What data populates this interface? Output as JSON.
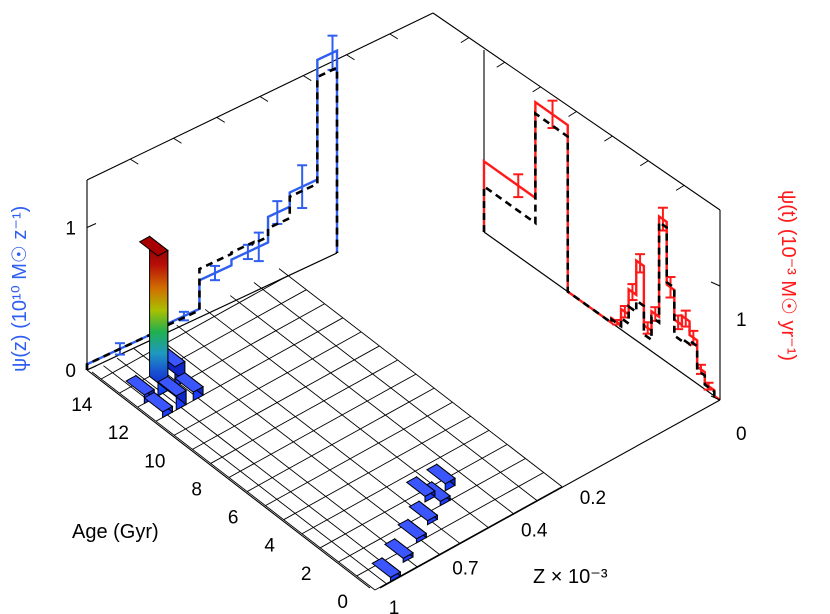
{
  "chart_data": {
    "type": "bar",
    "subtype": "3d-bar-with-side-projections",
    "x_axis": {
      "title": "Age (Gyr)",
      "ticks": [
        "0",
        "2",
        "4",
        "6",
        "8",
        "10",
        "12",
        "14"
      ],
      "range": [
        0,
        15.5
      ]
    },
    "z_axis": {
      "title": "Z × 10⁻³",
      "ticks": [
        "0.2",
        "0.4",
        "0.7",
        "1"
      ],
      "scale": "log"
    },
    "left_panel": {
      "ylabel": "ψ(z) (10¹⁰ M☉ z⁻¹)",
      "ticks": [
        "0",
        "1"
      ],
      "ylim": [
        0,
        1.5
      ],
      "x": [
        0.1,
        0.2,
        0.28,
        0.4,
        0.45,
        0.55,
        0.72,
        1.0
      ],
      "series": [
        {
          "role": "measured",
          "color": "#2f5ff0",
          "values": [
            0.04,
            0.06,
            0.26,
            0.3,
            0.3,
            0.48,
            0.58,
            1.42
          ],
          "errors": [
            0.04,
            0.03,
            0.05,
            0.05,
            0.1,
            0.08,
            0.15,
            0.12
          ]
        },
        {
          "role": "model",
          "color": "#000000",
          "values": [
            0.04,
            0.05,
            0.34,
            0.35,
            0.34,
            0.4,
            0.55,
            1.3
          ]
        }
      ]
    },
    "right_panel": {
      "ylabel": "ψ(t) (10⁻³ M☉ yr⁻¹)",
      "ticks": [
        "0",
        "1"
      ],
      "ylim": [
        0,
        2.0
      ],
      "x": [
        0,
        0.75,
        1.25,
        1.75,
        2.25,
        2.75,
        3.25,
        3.75,
        4.25,
        4.75,
        5.25,
        5.75,
        6.25,
        6.75,
        7.5,
        9.0,
        11.0,
        13.25
      ],
      "series": [
        {
          "role": "measured",
          "color": "#ff1a1a",
          "values": [
            0.0,
            0.05,
            0.15,
            0.38,
            0.5,
            0.42,
            0.68,
            1.23,
            0.35,
            0.18,
            0.7,
            0.4,
            0.18,
            0.04,
            0.0,
            0.0,
            1.46,
            0.62
          ],
          "errors": [
            0.0,
            0.03,
            0.04,
            0.06,
            0.07,
            0.06,
            0.09,
            0.1,
            0.06,
            0.05,
            0.08,
            0.07,
            0.05,
            0.02,
            0.0,
            0.0,
            0.12,
            0.1
          ]
        },
        {
          "role": "model",
          "color": "#000000",
          "values": [
            0.0,
            0.04,
            0.12,
            0.33,
            0.3,
            0.28,
            0.7,
            1.18,
            0.3,
            0.1,
            0.35,
            0.25,
            0.1,
            0.03,
            0.0,
            0.0,
            1.36,
            0.4
          ]
        }
      ]
    },
    "bars_3d": [
      {
        "age": 13.5,
        "z": 0.7,
        "height": 1.0
      },
      {
        "age": 13.5,
        "z": 0.55,
        "height": 0.14
      },
      {
        "age": 12.5,
        "z": 0.7,
        "height": 0.1
      },
      {
        "age": 12.5,
        "z": 0.55,
        "height": 0.06
      },
      {
        "age": 13.5,
        "z": 0.85,
        "height": 0.06
      },
      {
        "age": 12.5,
        "z": 0.85,
        "height": 0.04
      },
      {
        "age": 3.0,
        "z": 0.18,
        "height": 0.05
      },
      {
        "age": 3.0,
        "z": 0.24,
        "height": 0.04
      },
      {
        "age": 2.5,
        "z": 0.22,
        "height": 0.03
      },
      {
        "age": 2.0,
        "z": 0.3,
        "height": 0.025
      },
      {
        "age": 1.5,
        "z": 0.4,
        "height": 0.02
      },
      {
        "age": 1.0,
        "z": 0.55,
        "height": 0.015
      },
      {
        "age": 0.5,
        "z": 0.75,
        "height": 0.01
      }
    ]
  }
}
